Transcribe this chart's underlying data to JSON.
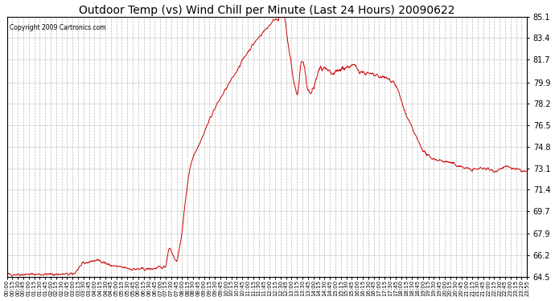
{
  "title": "Outdoor Temp (vs) Wind Chill per Minute (Last 24 Hours) 20090622",
  "copyright_text": "Copyright 2009 Cartronics.com",
  "line_color": "#cc0000",
  "bg_color": "#ffffff",
  "plot_bg_color": "#ffffff",
  "grid_color": "#bbbbbb",
  "yticks": [
    64.5,
    66.2,
    67.9,
    69.7,
    71.4,
    73.1,
    74.8,
    76.5,
    78.2,
    79.9,
    81.7,
    83.4,
    85.1
  ],
  "ymin": 64.5,
  "ymax": 85.1,
  "xtick_labels": [
    "00:00",
    "00:15",
    "00:30",
    "00:45",
    "01:00",
    "01:15",
    "01:30",
    "01:45",
    "02:00",
    "02:15",
    "02:30",
    "02:45",
    "03:00",
    "03:15",
    "03:30",
    "03:45",
    "04:00",
    "04:15",
    "04:30",
    "04:45",
    "05:00",
    "05:15",
    "05:30",
    "05:45",
    "06:00",
    "06:15",
    "06:30",
    "06:45",
    "07:00",
    "07:15",
    "07:30",
    "07:45",
    "08:00",
    "08:15",
    "08:30",
    "08:45",
    "09:00",
    "09:15",
    "09:30",
    "09:45",
    "10:00",
    "10:15",
    "10:30",
    "10:45",
    "11:00",
    "11:15",
    "11:30",
    "11:45",
    "12:00",
    "12:15",
    "12:30",
    "12:45",
    "13:00",
    "13:15",
    "13:30",
    "13:45",
    "14:00",
    "14:15",
    "14:30",
    "14:45",
    "15:00",
    "15:15",
    "15:30",
    "15:45",
    "16:00",
    "16:15",
    "16:30",
    "16:45",
    "17:00",
    "17:15",
    "17:30",
    "17:45",
    "18:00",
    "18:15",
    "18:30",
    "18:45",
    "19:00",
    "19:15",
    "19:30",
    "19:45",
    "20:00",
    "20:15",
    "20:30",
    "20:45",
    "21:00",
    "21:15",
    "21:30",
    "21:45",
    "22:00",
    "22:15",
    "22:30",
    "22:45",
    "23:00",
    "23:15",
    "23:20",
    "23:55"
  ],
  "curve_knots_x": [
    0,
    3.0,
    3.5,
    4.2,
    4.8,
    5.5,
    6.0,
    7.3,
    7.5,
    7.8,
    8.5,
    9.0,
    9.5,
    10.5,
    11.0,
    11.5,
    12.0,
    12.5,
    12.75,
    13.1,
    13.4,
    13.6,
    14.0,
    14.5,
    15.0,
    15.5,
    16.0,
    16.3,
    16.8,
    17.3,
    17.8,
    18.5,
    19.5,
    20.5,
    21.0,
    21.5,
    22.0,
    22.5,
    23.0,
    23.5,
    24.0
  ],
  "curve_knots_y": [
    64.7,
    64.7,
    65.5,
    65.8,
    65.4,
    65.2,
    65.1,
    65.3,
    66.8,
    65.8,
    73.5,
    75.5,
    77.5,
    80.5,
    82.0,
    83.2,
    84.2,
    85.0,
    85.05,
    81.5,
    79.0,
    81.5,
    79.0,
    81.0,
    80.5,
    81.0,
    81.2,
    80.8,
    80.5,
    80.3,
    80.0,
    77.0,
    74.0,
    73.5,
    73.2,
    73.0,
    73.1,
    72.9,
    73.2,
    73.0,
    72.8
  ]
}
